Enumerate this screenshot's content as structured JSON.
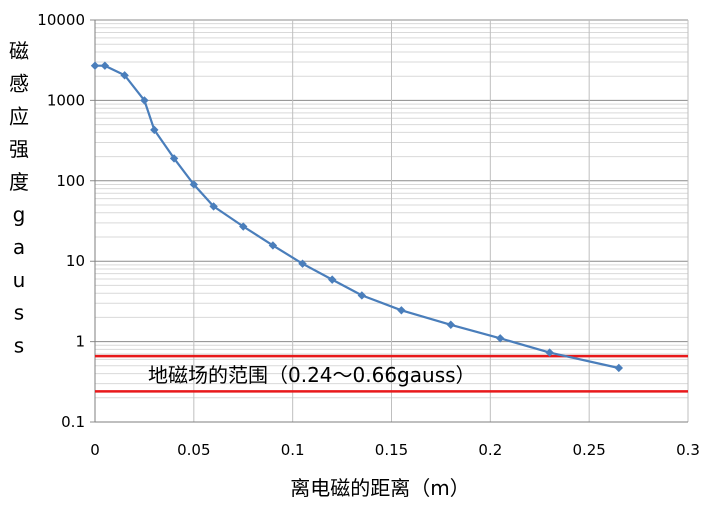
{
  "chart_data": {
    "type": "line",
    "title": "",
    "xlabel": "离电磁的距离（m）",
    "ylabel": "磁感应强度gauss",
    "ylabel_chars": [
      "磁",
      "感",
      "应",
      "强",
      "度",
      "g",
      "a",
      "u",
      "s",
      "s"
    ],
    "x_scale": "linear",
    "y_scale": "log",
    "xlim": [
      0,
      0.3
    ],
    "ylim": [
      0.1,
      10000
    ],
    "x_ticks": [
      "0",
      "0.05",
      "0.1",
      "0.15",
      "0.2",
      "0.25",
      "0.3"
    ],
    "y_ticks": [
      "0.1",
      "1",
      "10",
      "100",
      "1000",
      "10000"
    ],
    "grid": true,
    "series": [
      {
        "color": "#4a7ebb",
        "marker": "diamond",
        "x": [
          0.0,
          0.005,
          0.015,
          0.025,
          0.03,
          0.04,
          0.05,
          0.06,
          0.075,
          0.09,
          0.105,
          0.12,
          0.135,
          0.155,
          0.18,
          0.205,
          0.23,
          0.265
        ],
        "y": [
          2700,
          2700,
          2050,
          1000,
          430,
          190,
          90,
          48,
          27,
          15.7,
          9.3,
          5.9,
          3.75,
          2.45,
          1.62,
          1.1,
          0.73,
          0.47
        ]
      }
    ],
    "reference_lines": [
      {
        "y": 0.66,
        "color": "#e8191b"
      },
      {
        "y": 0.24,
        "color": "#e8191b"
      }
    ],
    "annotation": "地磁场的范围（0.24～0.66gauss）"
  }
}
